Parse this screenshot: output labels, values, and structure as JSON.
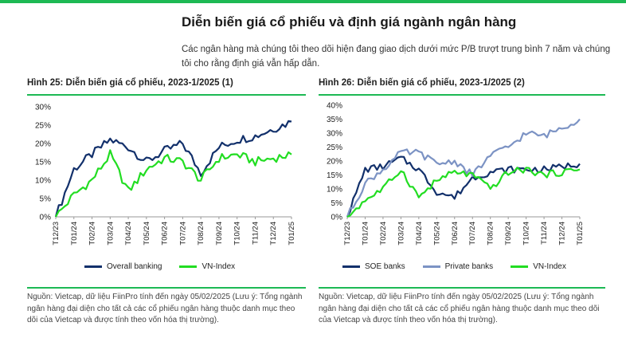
{
  "page": {
    "title": "Diễn biến giá cổ phiếu và định giá ngành ngân hàng",
    "intro": "Các ngân hàng mà chúng tôi theo dõi hiện đang giao dịch dưới mức P/B trượt trung bình 7 năm và chúng tôi cho rằng định giá vẫn hấp dẫn.",
    "accent_color": "#1db954"
  },
  "figures": [
    {
      "title": "Hình 25: Diễn biến giá cổ phiếu, 2023-1/2025 (1)",
      "source": "Nguồn: Vietcap, dữ liệu FiinPro tính đến ngày 05/02/2025 (Lưu ý: Tổng ngành ngân hàng đại diện cho tất cả các cổ phiếu ngân hàng thuộc danh mục theo dõi của Vietcap và được tính theo vốn hóa thị trường)."
    },
    {
      "title": "Hình 26: Diễn biến giá cổ phiếu, 2023-1/2025 (2)",
      "source": "Nguồn: Vietcap, dữ liệu FiinPro tính đến ngày 05/02/2025 (Lưu ý: Tổng ngành ngân hàng đại diện cho tất cả các cổ phiếu ngân hàng thuộc danh mục theo dõi của Vietcap và được tính theo vốn hóa thị trường)."
    }
  ],
  "chart_data": [
    {
      "type": "line",
      "title": "Hình 25: Diễn biến giá cổ phiếu, 2023-1/2025 (1)",
      "xlabel": "",
      "ylabel": "",
      "x": [
        "T12/23",
        "T01/24",
        "T02/24",
        "T03/24",
        "T04/24",
        "T05/24",
        "T06/24",
        "T07/24",
        "T08/24",
        "T09/24",
        "T10/24",
        "T11/24",
        "T12/24",
        "T01/25"
      ],
      "x_ticks": [
        "T12/23",
        "T01/24",
        "T02/24",
        "T03/24",
        "T04/24",
        "T05/24",
        "T06/24",
        "T07/24",
        "T08/24",
        "T09/24",
        "T10/24",
        "T11/24",
        "T12/24",
        "T01/25"
      ],
      "y_ticks": [
        "0%",
        "5%",
        "10%",
        "15%",
        "20%",
        "25%",
        "30%"
      ],
      "ylim": [
        0,
        30
      ],
      "grid": false,
      "legend": "bottom",
      "series": [
        {
          "name": "Overall banking",
          "color": "#12306b",
          "values": [
            0,
            13,
            17,
            21,
            19,
            15,
            18,
            20,
            12,
            19,
            21,
            22,
            24,
            26
          ]
        },
        {
          "name": "VN-Index",
          "color": "#22dd22",
          "values": [
            0,
            6,
            10,
            17,
            7,
            13,
            16,
            15,
            10,
            16,
            17,
            15,
            16,
            17
          ]
        }
      ]
    },
    {
      "type": "line",
      "title": "Hình 26: Diễn biến giá cổ phiếu, 2023-1/2025 (2)",
      "xlabel": "",
      "ylabel": "",
      "x": [
        "T12/23",
        "T01/24",
        "T02/24",
        "T03/24",
        "T04/24",
        "T05/24",
        "T06/24",
        "T07/24",
        "T08/24",
        "T09/24",
        "T10/24",
        "T11/24",
        "T12/24",
        "T01/25"
      ],
      "x_ticks": [
        "T12/23",
        "T01/24",
        "T02/24",
        "T03/24",
        "T04/24",
        "T05/24",
        "T06/24",
        "T07/24",
        "T08/24",
        "T09/24",
        "T10/24",
        "T11/24",
        "T12/24",
        "T01/25"
      ],
      "y_ticks": [
        "0%",
        "5%",
        "10%",
        "15%",
        "20%",
        "25%",
        "30%",
        "35%",
        "40%"
      ],
      "ylim": [
        0,
        40
      ],
      "grid": false,
      "legend": "bottom",
      "series": [
        {
          "name": "SOE banks",
          "color": "#12306b",
          "values": [
            0,
            17,
            18,
            21,
            17,
            9,
            7,
            14,
            16,
            17,
            17,
            17,
            18,
            19
          ]
        },
        {
          "name": "Private banks",
          "color": "#7c93c4",
          "values": [
            0,
            12,
            17,
            23,
            23,
            19,
            20,
            15,
            22,
            25,
            30,
            29,
            32,
            35
          ]
        },
        {
          "name": "VN-Index",
          "color": "#22dd22",
          "values": [
            0,
            6,
            10,
            17,
            7,
            13,
            16,
            15,
            10,
            16,
            17,
            15,
            16,
            17
          ]
        }
      ]
    }
  ]
}
